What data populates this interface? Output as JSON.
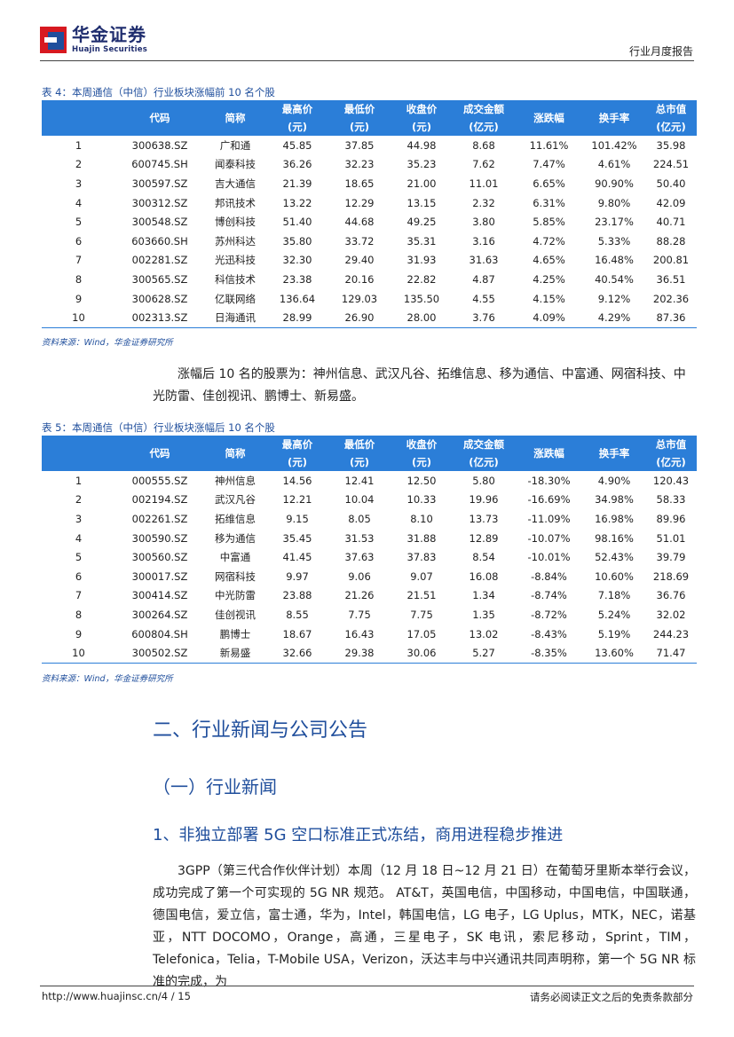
{
  "header": {
    "logo_cn": "华金证券",
    "logo_en": "Huajin Securities",
    "report_type": "行业月度报告"
  },
  "table4": {
    "caption": "表 4：本周通信（中信）行业板块涨幅前 10 名个股",
    "headers": {
      "code": "代码",
      "name": "简称",
      "high": "最高价",
      "high_unit": "(元)",
      "low": "最低价",
      "low_unit": "(元)",
      "close": "收盘价",
      "close_unit": "(元)",
      "amount": "成交金额",
      "amount_unit": "(亿元)",
      "change": "涨跌幅",
      "turnover": "换手率",
      "mcap": "总市值",
      "mcap_unit": "(亿元)"
    },
    "rows": [
      [
        "1",
        "300638.SZ",
        "广和通",
        "45.85",
        "37.85",
        "44.98",
        "8.68",
        "11.61%",
        "101.42%",
        "35.98"
      ],
      [
        "2",
        "600745.SH",
        "闻泰科技",
        "36.26",
        "32.23",
        "35.23",
        "7.62",
        "7.47%",
        "4.61%",
        "224.51"
      ],
      [
        "3",
        "300597.SZ",
        "吉大通信",
        "21.39",
        "18.65",
        "21.00",
        "11.01",
        "6.65%",
        "90.90%",
        "50.40"
      ],
      [
        "4",
        "300312.SZ",
        "邦讯技术",
        "13.22",
        "12.29",
        "13.15",
        "2.32",
        "6.31%",
        "9.80%",
        "42.09"
      ],
      [
        "5",
        "300548.SZ",
        "博创科技",
        "51.40",
        "44.68",
        "49.25",
        "3.80",
        "5.85%",
        "23.17%",
        "40.71"
      ],
      [
        "6",
        "603660.SH",
        "苏州科达",
        "35.80",
        "33.72",
        "35.31",
        "3.16",
        "4.72%",
        "5.33%",
        "88.28"
      ],
      [
        "7",
        "002281.SZ",
        "光迅科技",
        "32.30",
        "29.40",
        "31.93",
        "31.63",
        "4.65%",
        "16.48%",
        "200.81"
      ],
      [
        "8",
        "300565.SZ",
        "科信技术",
        "23.38",
        "20.16",
        "22.82",
        "4.87",
        "4.25%",
        "40.54%",
        "36.51"
      ],
      [
        "9",
        "300628.SZ",
        "亿联网络",
        "136.64",
        "129.03",
        "135.50",
        "4.55",
        "4.15%",
        "9.12%",
        "202.36"
      ],
      [
        "10",
        "002313.SZ",
        "日海通讯",
        "28.99",
        "26.90",
        "28.00",
        "3.76",
        "4.09%",
        "4.29%",
        "87.36"
      ]
    ],
    "source": "资料来源：Wind，华金证券研究所"
  },
  "paragraph1": "涨幅后 10 名的股票为：神州信息、武汉凡谷、拓维信息、移为通信、中富通、网宿科技、中光防雷、佳创视讯、鹏博士、新易盛。",
  "table5": {
    "caption": "表 5：本周通信（中信）行业板块涨幅后 10 名个股",
    "headers": {
      "code": "代码",
      "name": "简称",
      "high": "最高价",
      "high_unit": "(元)",
      "low": "最低价",
      "low_unit": "(元)",
      "close": "收盘价",
      "close_unit": "(元)",
      "amount": "成交金额",
      "amount_unit": "(亿元)",
      "change": "涨跌幅",
      "turnover": "换手率",
      "mcap": "总市值",
      "mcap_unit": "(亿元)"
    },
    "rows": [
      [
        "1",
        "000555.SZ",
        "神州信息",
        "14.56",
        "12.41",
        "12.50",
        "5.80",
        "-18.30%",
        "4.90%",
        "120.43"
      ],
      [
        "2",
        "002194.SZ",
        "武汉凡谷",
        "12.21",
        "10.04",
        "10.33",
        "19.96",
        "-16.69%",
        "34.98%",
        "58.33"
      ],
      [
        "3",
        "002261.SZ",
        "拓维信息",
        "9.15",
        "8.05",
        "8.10",
        "13.73",
        "-11.09%",
        "16.98%",
        "89.96"
      ],
      [
        "4",
        "300590.SZ",
        "移为通信",
        "35.45",
        "31.53",
        "31.88",
        "12.89",
        "-10.07%",
        "98.16%",
        "51.01"
      ],
      [
        "5",
        "300560.SZ",
        "中富通",
        "41.45",
        "37.63",
        "37.83",
        "8.54",
        "-10.01%",
        "52.43%",
        "39.79"
      ],
      [
        "6",
        "300017.SZ",
        "网宿科技",
        "9.97",
        "9.06",
        "9.07",
        "16.08",
        "-8.84%",
        "10.60%",
        "218.69"
      ],
      [
        "7",
        "300414.SZ",
        "中光防雷",
        "23.88",
        "21.26",
        "21.51",
        "1.34",
        "-8.74%",
        "7.18%",
        "36.76"
      ],
      [
        "8",
        "300264.SZ",
        "佳创视讯",
        "8.55",
        "7.75",
        "7.75",
        "1.35",
        "-8.72%",
        "5.24%",
        "32.02"
      ],
      [
        "9",
        "600804.SH",
        "鹏博士",
        "18.67",
        "16.43",
        "17.05",
        "13.02",
        "-8.43%",
        "5.19%",
        "244.23"
      ],
      [
        "10",
        "300502.SZ",
        "新易盛",
        "32.66",
        "29.38",
        "30.06",
        "5.27",
        "-8.35%",
        "13.60%",
        "71.47"
      ]
    ],
    "source": "资料来源：Wind，华金证券研究所"
  },
  "section_title": "二、行业新闻与公司公告",
  "subsection_title": "（一）行业新闻",
  "item_title": "1、非独立部署 5G 空口标准正式冻结，商用进程稳步推进",
  "paragraph2": "3GPP（第三代合作伙伴计划）本周（12 月 18 日~12 月 21 日）在葡萄牙里斯本举行会议，成功完成了第一个可实现的 5G NR 规范。 AT&T，英国电信，中国移动，中国电信，中国联通，德国电信，爱立信，富士通，华为，Intel，韩国电信，LG 电子，LG Uplus，MTK，NEC，诺基亚，NTT DOCOMO，Orange，高通，三星电子，SK 电讯，索尼移动，Sprint，TIM，Telefonica，Telia，T-Mobile USA，Verizon，沃达丰与中兴通讯共同声明称，第一个 5G NR 标准的完成，为",
  "footer": {
    "left": "http://www.huajinsc.cn/4 / 15",
    "right": "请务必阅读正文之后的免责条款部分"
  },
  "colors": {
    "brand_blue": "#1f4e9c",
    "table_header": "#2b7ed8",
    "logo_red": "#d71920"
  }
}
